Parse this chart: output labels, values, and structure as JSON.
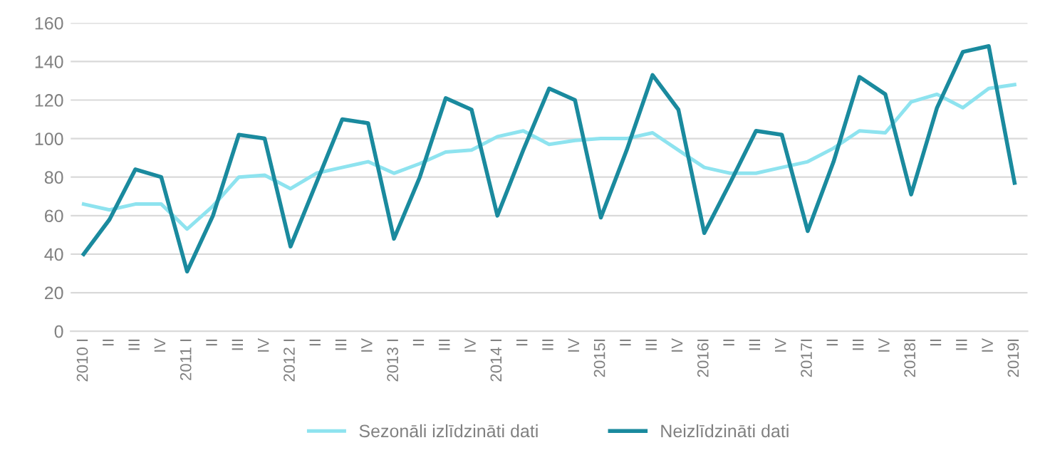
{
  "chart_data": {
    "type": "line",
    "categories": [
      "2010 I",
      "II",
      "III",
      "IV",
      "2011 I",
      "II",
      "III",
      "IV",
      "2012 I",
      "II",
      "III",
      "IV",
      "2013 I",
      "II",
      "III",
      "IV",
      "2014 I",
      "II",
      "III",
      "IV",
      "2015I",
      "II",
      "III",
      "IV",
      "2016I",
      "II",
      "III",
      "IV",
      "2017I",
      "II",
      "III",
      "IV",
      "2018I",
      "II",
      "III",
      "IV",
      "2019I"
    ],
    "series": [
      {
        "name": "Sezonāli izlīdzināti dati",
        "color": "#8ee3ef",
        "values": [
          66,
          63,
          66,
          66,
          53,
          65,
          80,
          81,
          74,
          82,
          85,
          88,
          82,
          87,
          93,
          94,
          101,
          104,
          97,
          99,
          100,
          100,
          103,
          94,
          85,
          82,
          82,
          85,
          88,
          95,
          104,
          103,
          119,
          123,
          116,
          126,
          128
        ]
      },
      {
        "name": "Neizlīdzināti dati",
        "color": "#1a8a9e",
        "values": [
          40,
          58,
          84,
          80,
          31,
          60,
          102,
          100,
          44,
          77,
          110,
          108,
          48,
          80,
          121,
          115,
          60,
          94,
          126,
          120,
          59,
          94,
          133,
          115,
          51,
          77,
          104,
          102,
          52,
          88,
          132,
          123,
          71,
          116,
          145,
          148,
          77
        ]
      }
    ],
    "ylim": [
      0,
      160
    ],
    "yticks": [
      0,
      20,
      40,
      60,
      80,
      100,
      120,
      140,
      160
    ],
    "grid": "y",
    "legend": "bottom",
    "marker": "none",
    "line_style": "solid"
  }
}
